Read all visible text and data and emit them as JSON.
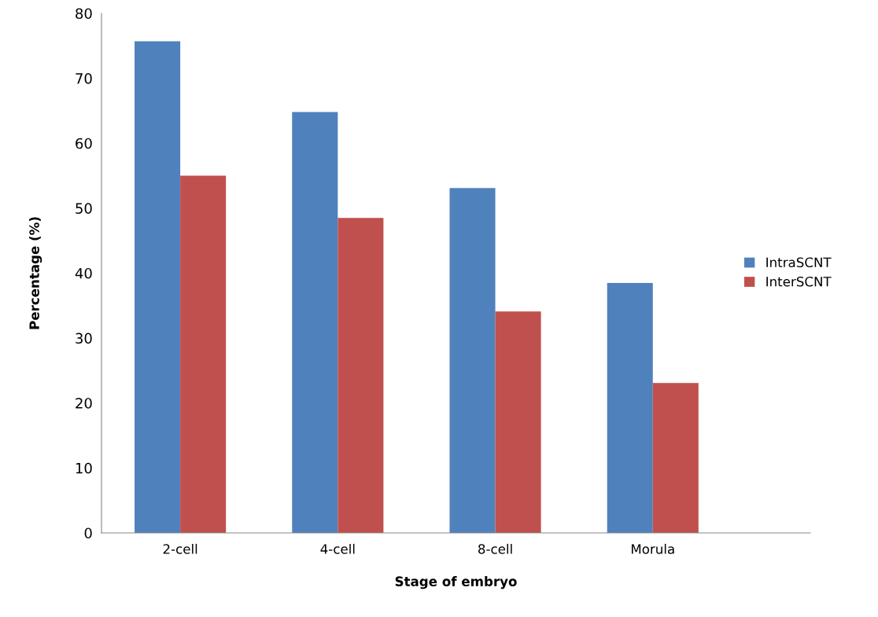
{
  "chart_data": {
    "type": "bar",
    "xlabel": "Stage of embryo",
    "ylabel": "Percentage (%)",
    "categories": [
      "2-cell",
      "4-cell",
      "8-cell",
      "Morula"
    ],
    "series": [
      {
        "name": "IntraSCNT",
        "color": "#4f81bd",
        "values": [
          75.7,
          64.8,
          53.1,
          38.5
        ]
      },
      {
        "name": "InterSCNT",
        "color": "#c0504d",
        "values": [
          55.0,
          48.5,
          34.1,
          23.1
        ]
      }
    ],
    "ylim": [
      0,
      80
    ],
    "yticks": [
      0,
      10,
      20,
      30,
      40,
      50,
      60,
      70,
      80
    ],
    "grid": false,
    "legend": "right"
  }
}
